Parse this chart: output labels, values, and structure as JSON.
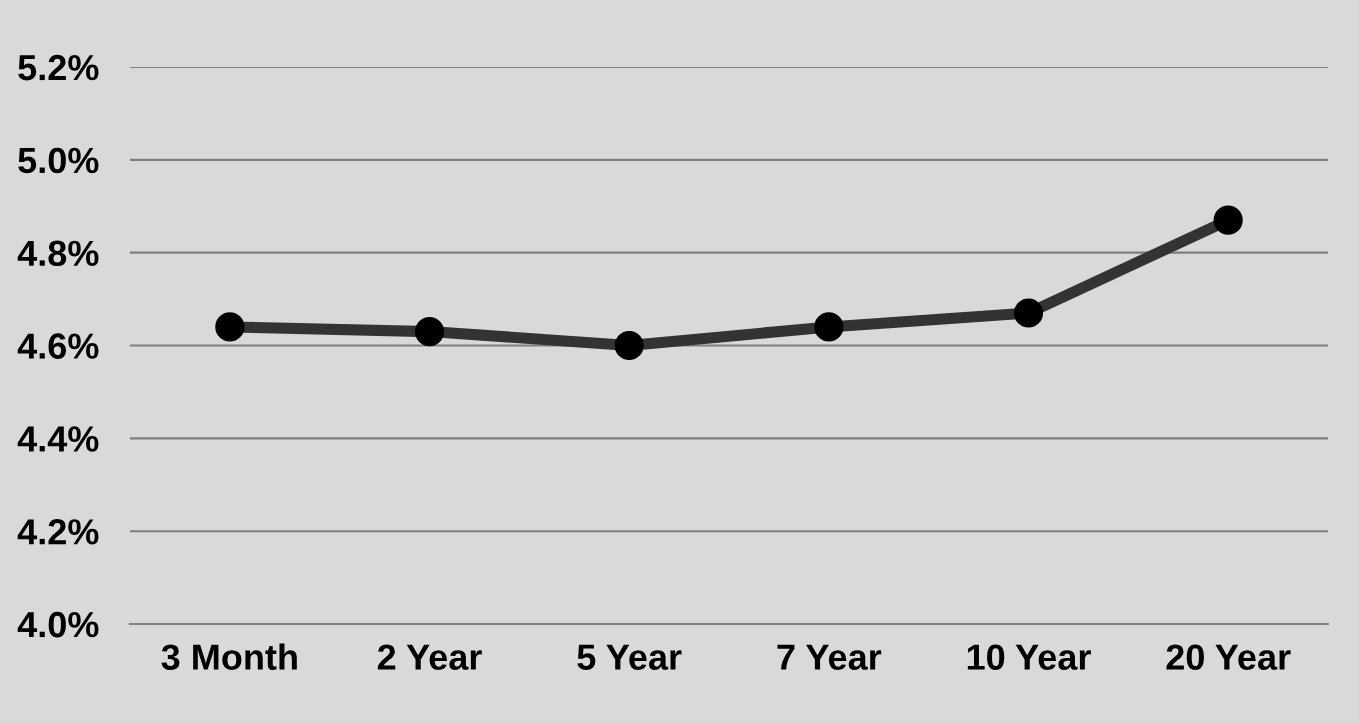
{
  "chart_data": {
    "type": "line",
    "categories": [
      "3 Month",
      "2 Year",
      "5 Year",
      "7 Year",
      "10 Year",
      "20 Year"
    ],
    "series": [
      {
        "color": "#333333",
        "values": [
          4.64,
          4.63,
          4.6,
          4.64,
          4.67,
          4.87
        ]
      }
    ],
    "ylim": [
      4.0,
      5.2
    ],
    "yticks": [
      {
        "value": 4.0,
        "label": "4.0%"
      },
      {
        "value": 4.2,
        "label": "4.2%"
      },
      {
        "value": 4.4,
        "label": "4.4%"
      },
      {
        "value": 4.6,
        "label": "4.6%"
      },
      {
        "value": 4.8,
        "label": "4.8%"
      },
      {
        "value": 5.0,
        "label": "5.0%"
      },
      {
        "value": 5.2,
        "label": "5.2%"
      }
    ],
    "grid": "y",
    "marker": "circle",
    "line_style": "solid"
  }
}
